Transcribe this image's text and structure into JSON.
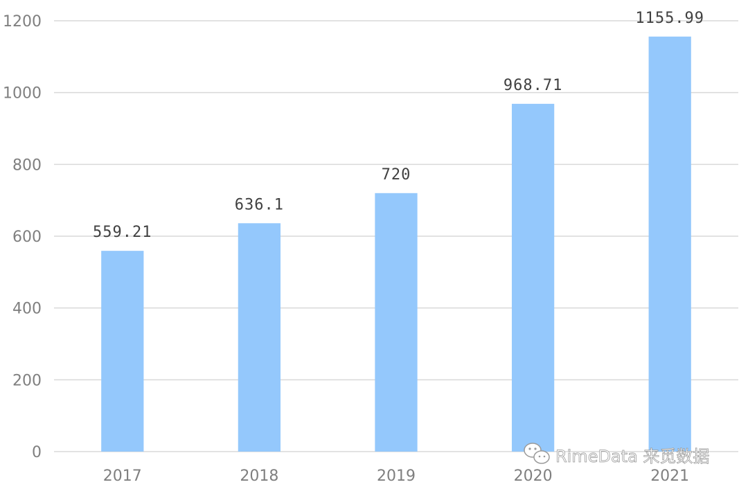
{
  "chart_data": {
    "type": "bar",
    "categories": [
      "2017",
      "2018",
      "2019",
      "2020",
      "2021"
    ],
    "values": [
      559.21,
      636.1,
      720,
      968.71,
      1155.99
    ],
    "data_labels": [
      "559.21",
      "636.1",
      "720",
      "968.71",
      "1155.99"
    ],
    "title": "",
    "xlabel": "",
    "ylabel": "",
    "ylim": [
      0,
      1200
    ],
    "yticks": [
      0,
      200,
      400,
      600,
      800,
      1000,
      1200
    ],
    "grid": true,
    "bar_color": "#94c8fc"
  },
  "watermark": {
    "text": "RimeData 来觅数据",
    "icon": "wechat-icon"
  }
}
